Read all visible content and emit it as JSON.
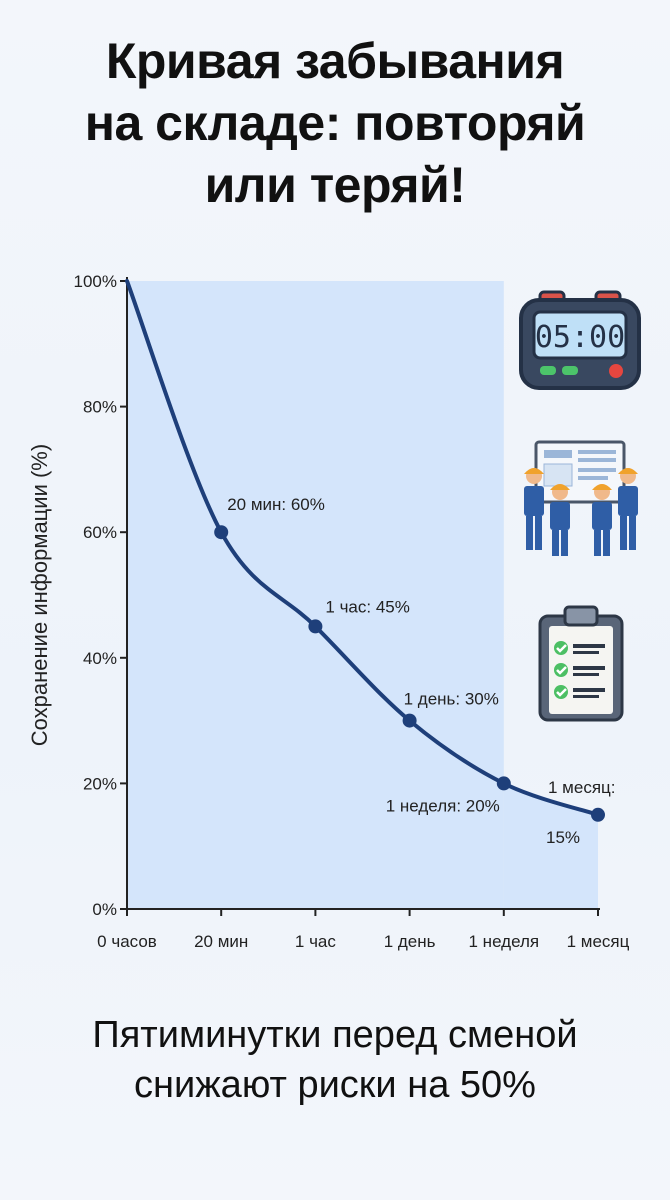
{
  "title": {
    "line1": "Кривая забывания",
    "line2": "на складе: повторяй",
    "line3": "или теряй!"
  },
  "footer": {
    "line1": "Пятиминутки перед сменой",
    "line2": "снижают риски на 50%"
  },
  "icons": {
    "timer": {
      "name": "alarm-clock-icon",
      "display": "05:00"
    },
    "team": {
      "name": "workers-briefing-icon"
    },
    "checklist": {
      "name": "checklist-clipboard-icon"
    }
  },
  "colors": {
    "curve": "#1e3f7a",
    "area": "#cfe2fa",
    "axis": "#222222"
  },
  "chart_data": {
    "type": "line",
    "ylabel": "Сохранение информации (%)",
    "xlabel": "",
    "ylim": [
      0,
      100
    ],
    "yticks": [
      "0%",
      "20%",
      "40%",
      "60%",
      "80%",
      "100%"
    ],
    "categories": [
      "0 часов",
      "20 мин",
      "1 час",
      "1 день",
      "1 неделя",
      "1 месяц"
    ],
    "series": [
      {
        "values": [
          100,
          60,
          45,
          30,
          20,
          15
        ]
      }
    ],
    "point_labels": [
      "",
      "20 мин: 60%",
      "1 час: 45%",
      "1 день: 30%",
      "1 неделя: 20%",
      "1 месяц: 15%"
    ],
    "shaded_region": [
      "0 часов",
      "1 неделя"
    ]
  }
}
